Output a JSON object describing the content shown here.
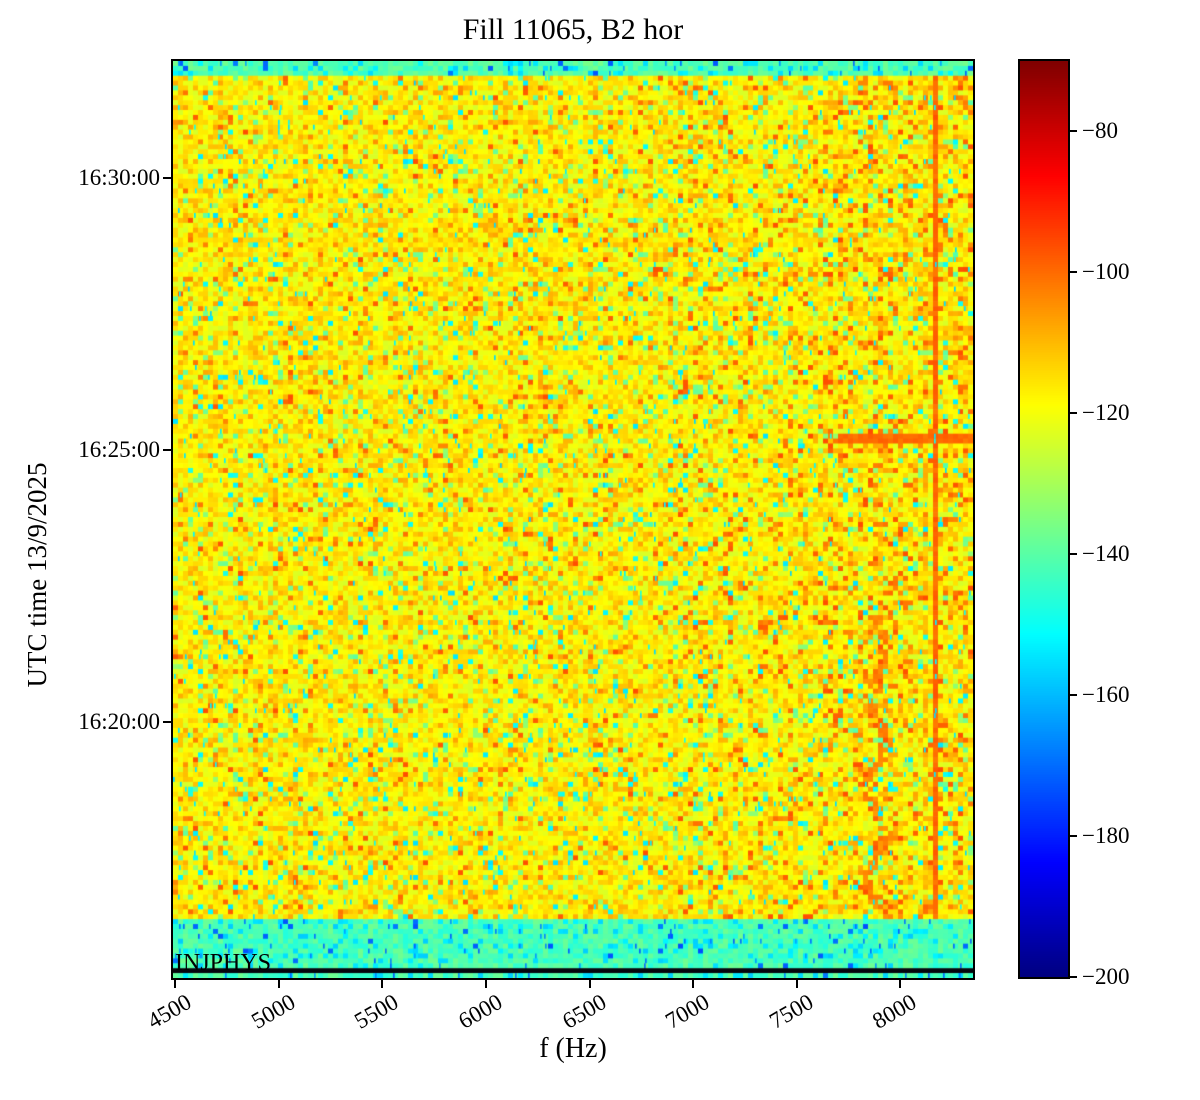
{
  "figure": {
    "title": "Fill 11065, B2 hor",
    "x_axis_label": "f (Hz)",
    "y_axis_label": "UTC time 13/9/2025",
    "annotation": "INJPHYS",
    "x_tick_labels": [
      "4500",
      "5000",
      "5500",
      "6000",
      "6500",
      "7000",
      "7500",
      "8000"
    ],
    "y_tick_labels": [
      "16:30:00",
      "16:25:00",
      "16:20:00"
    ],
    "colorbar_tick_labels": [
      "−80",
      "−100",
      "−120",
      "−140",
      "−160",
      "−180",
      "−200"
    ]
  },
  "chart_data": {
    "type": "heatmap",
    "title": "Fill 11065, B2 hor",
    "xlabel": "f (Hz)",
    "ylabel": "UTC time 13/9/2025",
    "colormap": "jet",
    "grid": false,
    "x_range_hz": [
      4490,
      8350
    ],
    "x_ticks_hz": [
      4500,
      5000,
      5500,
      6000,
      6500,
      7000,
      7500,
      8000
    ],
    "y_ticks_time": [
      "16:30:00",
      "16:25:00",
      "16:20:00"
    ],
    "y_range_time": [
      "16:32:09",
      "16:15:18"
    ],
    "color_scale": {
      "range_db": [
        -200,
        -70
      ],
      "ticks_db": [
        -80,
        -100,
        -120,
        -140,
        -160,
        -180,
        -200
      ]
    },
    "annotation": {
      "text": "INJPHYS",
      "position": "bottom-left"
    },
    "background": {
      "typical_level_db": -118,
      "description": "yellow broadband noise (−124 to −113 dB) with sporadic orange (−105 to −96), green (−141 to −132) and cyan (−155 to −147) speckle; orange speckle denser above 7600 Hz"
    },
    "bands": [
      {
        "name": "start-band",
        "from_time": "16:32:09",
        "to_time": "16:31:54",
        "level_db": -141,
        "description": "cyan-green band across full frequency range at top"
      },
      {
        "name": "injphys-band",
        "from_time": "16:16:21",
        "to_time": "16:15:28",
        "level_db": -142,
        "description": "green-cyan band across full range during INJPHYS"
      },
      {
        "name": "dark-stripe",
        "from_time": "16:15:28",
        "to_time": "16:15:21",
        "level_db": -200,
        "description": "near-black row just above bottom axis"
      },
      {
        "name": "final-row",
        "from_time": "16:15:21",
        "to_time": "16:15:18",
        "level_db": -142,
        "description": "thin green row at very bottom"
      }
    ],
    "vlines": [
      {
        "f_hz": 8160,
        "level_db": -97,
        "strength": "strong",
        "description": "persistent orange vertical line"
      },
      {
        "f_hz": 8120,
        "level_db": -106,
        "strength": "faint",
        "description": "intermittent faint orange line"
      }
    ],
    "wavy_line": {
      "f_hz": 7890,
      "wiggle_hz": 40,
      "level_db": -98,
      "description": "drifting orange trace near 7900 Hz, strongest before ~16:22"
    },
    "hlines": [
      {
        "time": "16:25:15",
        "from_hz": 7700,
        "to_hz": 8350,
        "level_db": -98,
        "description": "orange horizontal streak at right side"
      },
      {
        "time": "16:28:48",
        "from_hz": 4490,
        "to_hz": 8350,
        "level_db": -113,
        "description": "slightly brighter full-width row"
      }
    ]
  }
}
